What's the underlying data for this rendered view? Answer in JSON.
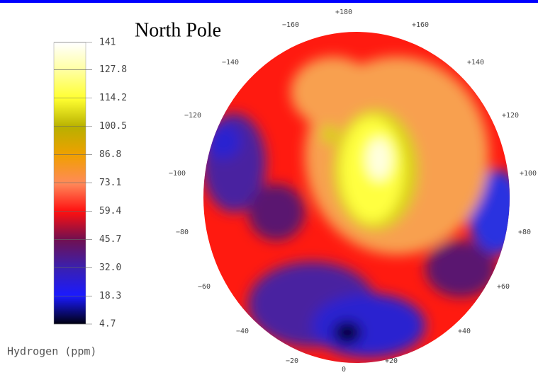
{
  "title": "North Pole",
  "colorbar": {
    "label": "Hydrogen (ppm)",
    "range": [
      4.7,
      141
    ],
    "ticks": [
      141,
      127.8,
      114.2,
      100.5,
      86.8,
      73.1,
      59.4,
      45.7,
      {
        "value": 32.0,
        "label": "32.0"
      },
      18.3,
      4.7
    ]
  },
  "longitude_labels": [
    "+180",
    "−160",
    "+160",
    "−140",
    "+140",
    "−120",
    "+120",
    "−100",
    "+100",
    "−80",
    "+80",
    "−60",
    "+60",
    "−40",
    "+40",
    "−20",
    "+20",
    "0"
  ]
}
